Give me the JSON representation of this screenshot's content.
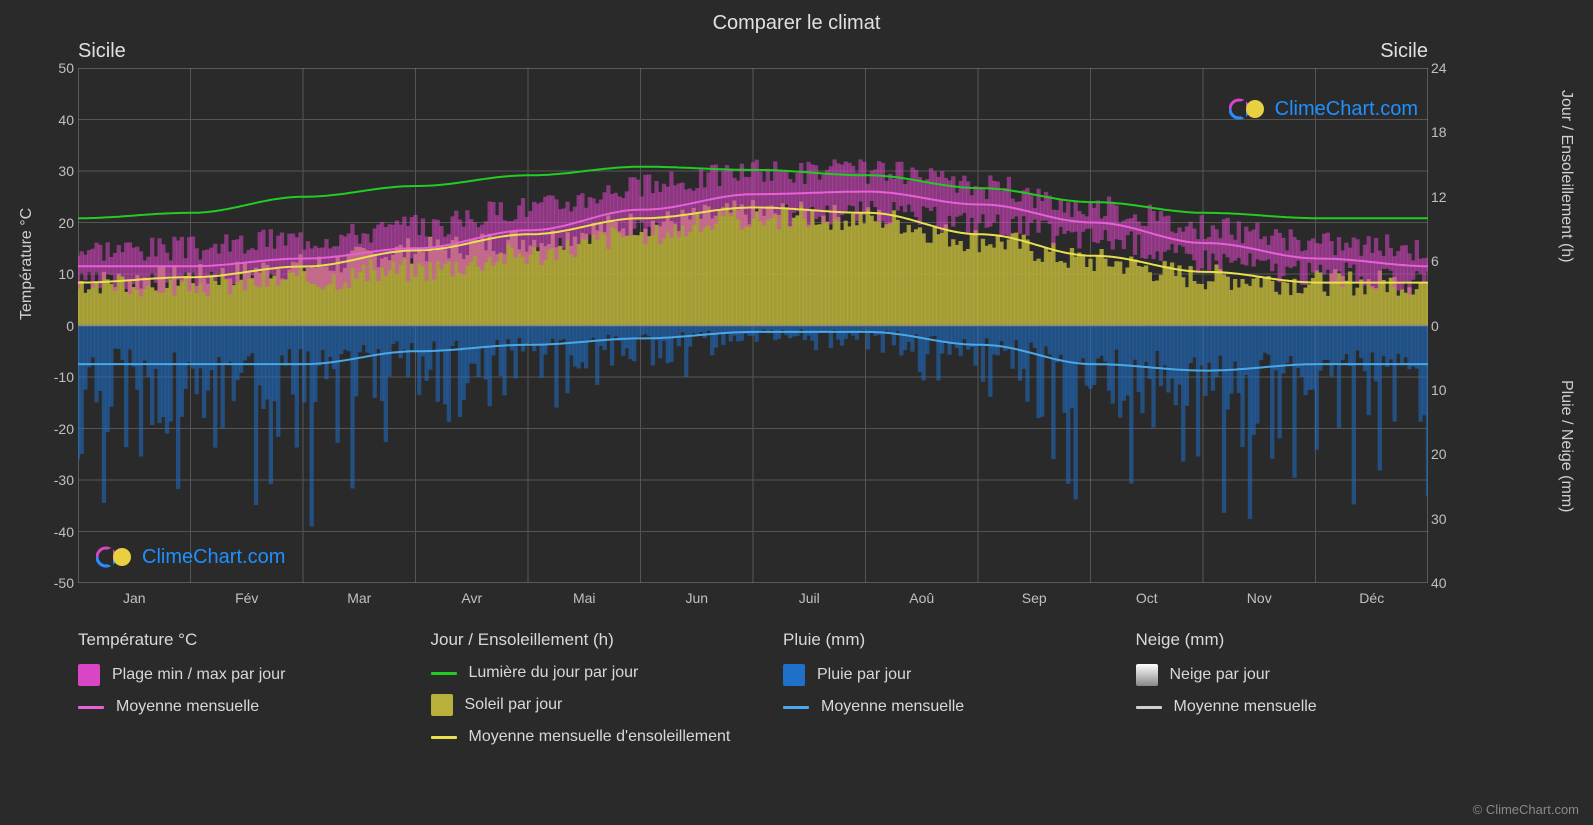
{
  "title": "Comparer le climat",
  "region_left": "Sicile",
  "region_right": "Sicile",
  "brand": "ClimeChart.com",
  "copyright": "© ClimeChart.com",
  "axes": {
    "y_left_label": "Température °C",
    "y_right_top_label": "Jour / Ensoleillement (h)",
    "y_right_bottom_label": "Pluie / Neige (mm)",
    "y_left": {
      "min": -50,
      "max": 50,
      "ticks": [
        50,
        40,
        30,
        20,
        10,
        0,
        -10,
        -20,
        -30,
        -40,
        -50
      ]
    },
    "y_right_top": {
      "min": 0,
      "max": 24,
      "ticks": [
        24,
        18,
        12,
        6,
        0
      ]
    },
    "y_right_bottom": {
      "min": 0,
      "max": 40,
      "ticks": [
        0,
        10,
        20,
        30,
        40
      ]
    },
    "x_labels": [
      "Jan",
      "Fév",
      "Mar",
      "Avr",
      "Mai",
      "Jun",
      "Juil",
      "Aoû",
      "Sep",
      "Oct",
      "Nov",
      "Déc"
    ]
  },
  "colors": {
    "background": "#2a2a2a",
    "plot_bg": "#2a2a2a",
    "grid": "#555555",
    "temp_range_fill": "#d946c5",
    "temp_mean_line": "#e85fd8",
    "daylight_line": "#22cc22",
    "sun_fill": "#b8b03a",
    "sun_mean_line": "#e8e050",
    "rain_fill": "#1e70c8",
    "rain_mean_line": "#4aa8e8",
    "snow_fill": "#c8c8c8",
    "snow_mean_line": "#d0d0d0",
    "text": "#d0d0d0",
    "brand_blue": "#1e90ff",
    "brand_magenta": "#d946c5",
    "brand_yellow": "#e8d040"
  },
  "series": {
    "temp_min_c": [
      8,
      8,
      9,
      11,
      14,
      18,
      21,
      22,
      20,
      17,
      13,
      10
    ],
    "temp_max_c": [
      15,
      15,
      17,
      19,
      23,
      27,
      30,
      30,
      27,
      23,
      19,
      16
    ],
    "temp_mean_c": [
      11.5,
      11.5,
      13,
      15,
      18.5,
      22.5,
      25.5,
      26,
      23.5,
      20,
      16,
      13
    ],
    "daylight_h": [
      10,
      10.5,
      12,
      13,
      14,
      14.8,
      14.5,
      14,
      12.8,
      11.5,
      10.5,
      10
    ],
    "sunshine_h": [
      4,
      4.5,
      5.5,
      7,
      8,
      9.5,
      10.5,
      10,
      8,
      6,
      4.5,
      4
    ],
    "sunshine_monthly_h": [
      4,
      4.5,
      5.5,
      7,
      8.5,
      10,
      11,
      10.5,
      8.5,
      6.5,
      5,
      4
    ],
    "rain_mm_monthly": [
      6,
      6,
      6,
      4,
      3,
      2,
      1,
      1,
      3,
      6,
      7,
      6
    ]
  },
  "legend": {
    "col1_header": "Température °C",
    "col1_item1": "Plage min / max par jour",
    "col1_item2": "Moyenne mensuelle",
    "col2_header": "Jour / Ensoleillement (h)",
    "col2_item1": "Lumière du jour par jour",
    "col2_item2": "Soleil par jour",
    "col2_item3": "Moyenne mensuelle d'ensoleillement",
    "col3_header": "Pluie (mm)",
    "col3_item1": "Pluie par jour",
    "col3_item2": "Moyenne mensuelle",
    "col4_header": "Neige (mm)",
    "col4_item1": "Neige par jour",
    "col4_item2": "Moyenne mensuelle"
  }
}
